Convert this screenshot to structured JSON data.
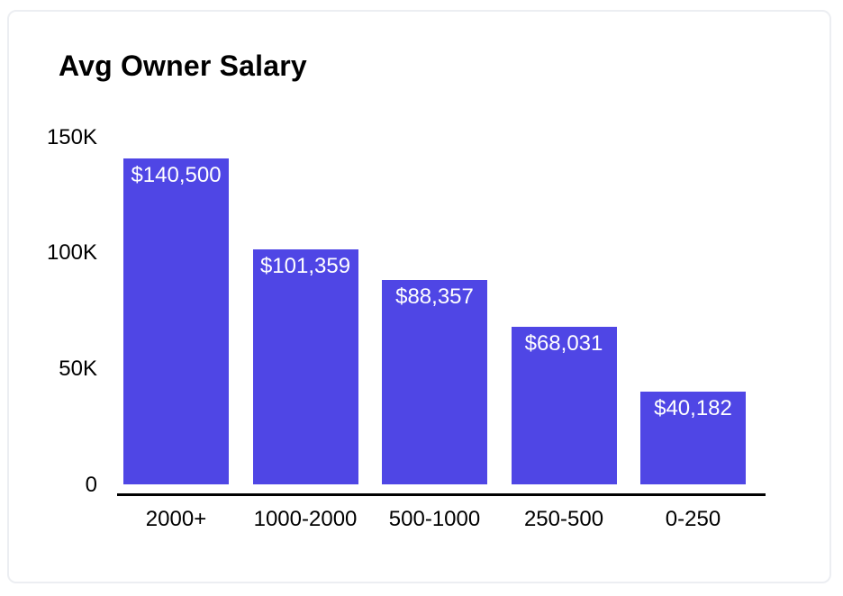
{
  "chart_data": {
    "type": "bar",
    "title": "Avg Owner Salary",
    "categories": [
      "2000+",
      "1000-2000",
      "500-1000",
      "250-500",
      "0-250"
    ],
    "values": [
      140500,
      101359,
      88357,
      68031,
      40182
    ],
    "bar_labels": [
      "$140,500",
      "$101,359",
      "$88,357",
      "$68,031",
      "$40,182"
    ],
    "yticks": [
      {
        "value": 150000,
        "label": "150K"
      },
      {
        "value": 100000,
        "label": "100K"
      },
      {
        "value": 50000,
        "label": "50K"
      },
      {
        "value": 0,
        "label": "0"
      }
    ],
    "ylim": [
      0,
      150000
    ],
    "xlabel": "",
    "ylabel": "",
    "grid": false,
    "legend": false,
    "colors": {
      "bar_fill": "#4F46E5",
      "bar_label_text": "#FFFFFF",
      "axis_line": "#000000",
      "tick_text": "#000000",
      "title_text": "#000000",
      "card_border": "#ECEEF2",
      "background": "#FFFFFF"
    }
  }
}
